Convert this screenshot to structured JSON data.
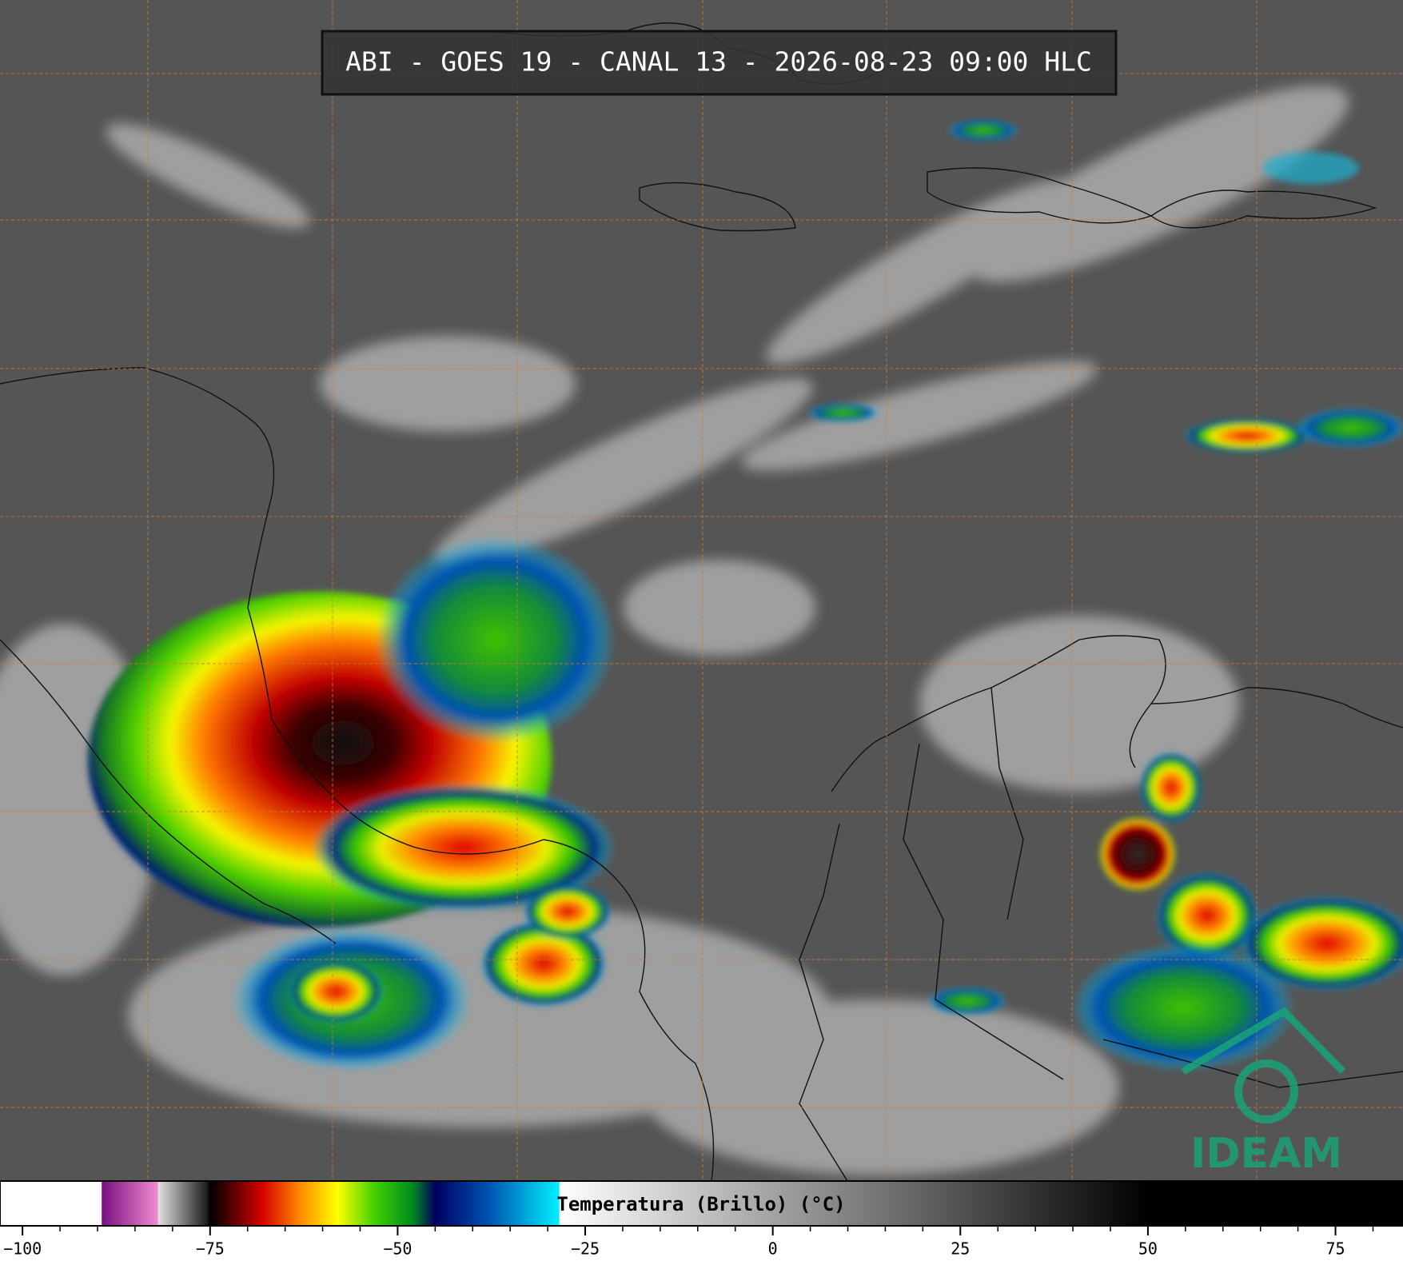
{
  "title": "ABI - GOES 19 - CANAL 13 - 2026-08-23 09:00 HLC",
  "logo": {
    "text": "IDEAM"
  },
  "colorbar": {
    "label": "Temperatura (Brillo) (°C)",
    "xlim": [
      -103,
      84
    ],
    "xticks": [
      {
        "value": -100,
        "label": "−100"
      },
      {
        "value": -75,
        "label": "−75"
      },
      {
        "value": -50,
        "label": "−50"
      },
      {
        "value": -25,
        "label": "−25"
      },
      0,
      25,
      50,
      75
    ],
    "minor_ticks": [
      -95,
      -90,
      -85,
      -80,
      -70,
      -65,
      -60,
      -55,
      -45,
      -40,
      -35,
      -30,
      -20,
      -15,
      -10,
      -5,
      5,
      10,
      15,
      20,
      30,
      35,
      40,
      45,
      55,
      60,
      65,
      70,
      80
    ],
    "colormap": [
      {
        "value": -89.5,
        "color": "#ffffff"
      },
      {
        "value": -89.4,
        "color": "#7a0f82"
      },
      {
        "value": -82,
        "color": "#f08ad0"
      },
      {
        "value": -81.9,
        "color": "#e0e0e0"
      },
      {
        "value": -75.5,
        "color": "#202020"
      },
      {
        "value": -75,
        "color": "#000000"
      },
      {
        "value": -73,
        "color": "#3a0000"
      },
      {
        "value": -68,
        "color": "#d80000"
      },
      {
        "value": -63,
        "color": "#ff8a00"
      },
      {
        "value": -58,
        "color": "#ffff00"
      },
      {
        "value": -53,
        "color": "#40d000"
      },
      {
        "value": -48,
        "color": "#008a20"
      },
      {
        "value": -45,
        "color": "#000060"
      },
      {
        "value": -38,
        "color": "#0050b0"
      },
      {
        "value": -28.5,
        "color": "#00f0ff"
      },
      {
        "value": -28.4,
        "color": "#ffffff"
      },
      {
        "value": 50,
        "color": "#000000"
      },
      {
        "value": 84,
        "color": "#000000"
      }
    ]
  }
}
